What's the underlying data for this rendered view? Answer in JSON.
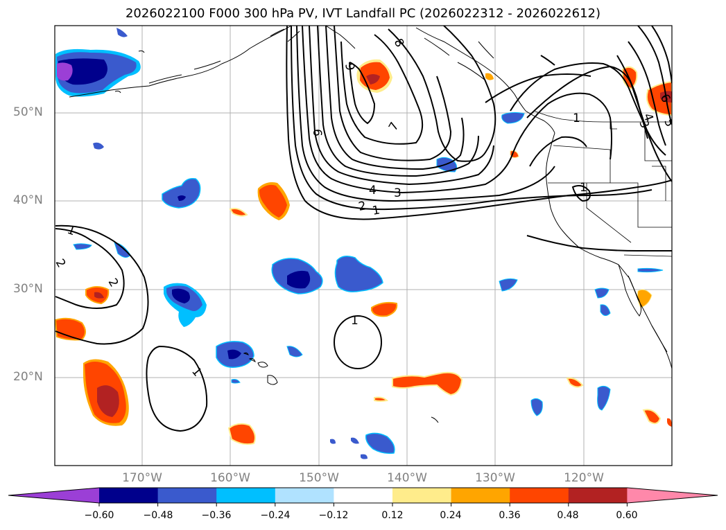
{
  "title": "2026022100 F000 300 hPa PV, IVT Landfall PC (2026022312 - 2026022612)",
  "lat_labels": [
    {
      "value": 50,
      "text": "50°N"
    },
    {
      "value": 40,
      "text": "40°N"
    },
    {
      "value": 30,
      "text": "30°N"
    },
    {
      "value": 20,
      "text": "20°N"
    }
  ],
  "lon_labels": [
    {
      "value": -170,
      "text": "170°W"
    },
    {
      "value": -160,
      "text": "160°W"
    },
    {
      "value": -150,
      "text": "150°W"
    },
    {
      "value": -140,
      "text": "140°W"
    },
    {
      "value": -130,
      "text": "130°W"
    },
    {
      "value": -120,
      "text": "120°W"
    }
  ],
  "colorbar": {
    "colors": [
      "#9b3fd6",
      "#00008c",
      "#3a5acd",
      "#00bfff",
      "#b0e2ff",
      "#ffffff",
      "#ffec8b",
      "#ffa500",
      "#ff4500",
      "#b22222",
      "#ff88aa"
    ],
    "tick_labels": [
      "−0.60",
      "−0.48",
      "−0.36",
      "−0.24",
      "−0.12",
      "0.12",
      "0.24",
      "0.36",
      "0.48",
      "0.60"
    ]
  },
  "contour_labels": [
    "8",
    "9",
    "6",
    "7",
    "3",
    "4",
    "2",
    "1",
    "1",
    "2",
    "1",
    "2",
    "1",
    "1",
    "1",
    "4",
    "3",
    "5",
    "6"
  ]
}
